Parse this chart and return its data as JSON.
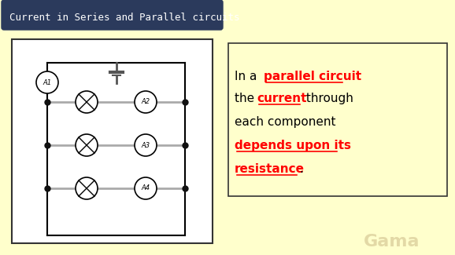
{
  "bg_color": "#FFFFCC",
  "title_text": "Current in Series and Parallel circuits",
  "title_bg": "#2B3A5C",
  "title_fg": "#FFFFFF",
  "circuit_bg": "#FFFFFF",
  "circuit_border": "#333333",
  "text_box_border": "#333333",
  "ammeter_labels": [
    "A1",
    "A2",
    "A3",
    "A4"
  ],
  "wire_color": "#AAAAAA",
  "dot_color": "#111111",
  "battery_color": "#555555"
}
